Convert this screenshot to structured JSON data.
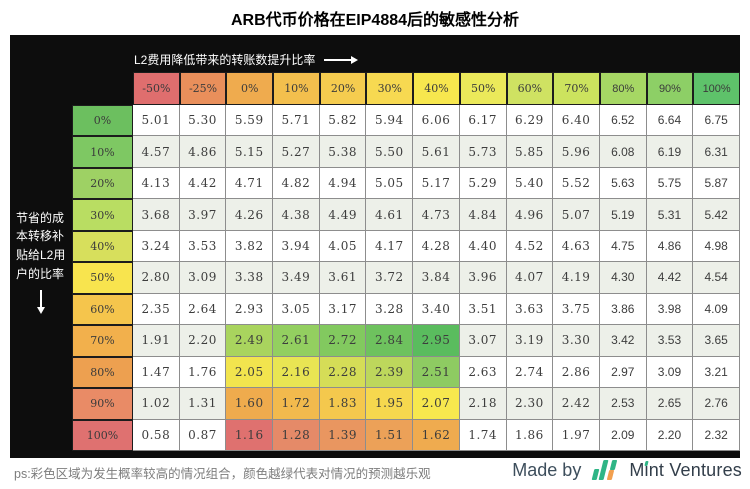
{
  "page": {
    "title": "ARB代币价格在EIP4884后的敏感性分析",
    "footnote": "ps:彩色区域为发生概率较高的情况组合，颜色越绿代表对情况的预测越乐观",
    "credit": {
      "made_by": "Made by",
      "brand": "Mint Ventures",
      "logo_icon": "mint-ventures-logo",
      "logo_green": "#2fb586",
      "logo_orange": "#f2a04f"
    }
  },
  "chart_data": {
    "type": "heatmap",
    "title": "ARB代币价格在EIP4884后的敏感性分析",
    "x_axis_label": "L2费用降低带来的转账数提升比率",
    "y_axis_label": "节省的成本转移补贴给L2用户的比率",
    "x_arrow": "right",
    "y_arrow": "down",
    "columns": [
      "-50%",
      "-25%",
      "0%",
      "10%",
      "20%",
      "30%",
      "40%",
      "50%",
      "60%",
      "70%",
      "80%",
      "90%",
      "100%"
    ],
    "rows": [
      "0%",
      "10%",
      "20%",
      "30%",
      "40%",
      "50%",
      "60%",
      "70%",
      "80%",
      "90%",
      "100%"
    ],
    "values": [
      [
        5.01,
        5.3,
        5.59,
        5.71,
        5.82,
        5.94,
        6.06,
        6.17,
        6.29,
        6.4,
        6.52,
        6.64,
        6.75
      ],
      [
        4.57,
        4.86,
        5.15,
        5.27,
        5.38,
        5.5,
        5.61,
        5.73,
        5.85,
        5.96,
        6.08,
        6.19,
        6.31
      ],
      [
        4.13,
        4.42,
        4.71,
        4.82,
        4.94,
        5.05,
        5.17,
        5.29,
        5.4,
        5.52,
        5.63,
        5.75,
        5.87
      ],
      [
        3.68,
        3.97,
        4.26,
        4.38,
        4.49,
        4.61,
        4.73,
        4.84,
        4.96,
        5.07,
        5.19,
        5.31,
        5.42
      ],
      [
        3.24,
        3.53,
        3.82,
        3.94,
        4.05,
        4.17,
        4.28,
        4.4,
        4.52,
        4.63,
        4.75,
        4.86,
        4.98
      ],
      [
        2.8,
        3.09,
        3.38,
        3.49,
        3.61,
        3.72,
        3.84,
        3.96,
        4.07,
        4.19,
        4.3,
        4.42,
        4.54
      ],
      [
        2.35,
        2.64,
        2.93,
        3.05,
        3.17,
        3.28,
        3.4,
        3.51,
        3.63,
        3.75,
        3.86,
        3.98,
        4.09
      ],
      [
        1.91,
        2.2,
        2.49,
        2.61,
        2.72,
        2.84,
        2.95,
        3.07,
        3.19,
        3.3,
        3.42,
        3.53,
        3.65
      ],
      [
        1.47,
        1.76,
        2.05,
        2.16,
        2.28,
        2.39,
        2.51,
        2.63,
        2.74,
        2.86,
        2.97,
        3.09,
        3.21
      ],
      [
        1.02,
        1.31,
        1.6,
        1.72,
        1.83,
        1.95,
        2.07,
        2.18,
        2.3,
        2.42,
        2.53,
        2.65,
        2.76
      ],
      [
        0.58,
        0.87,
        1.16,
        1.28,
        1.39,
        1.51,
        1.62,
        1.74,
        1.86,
        1.97,
        2.09,
        2.2,
        2.32
      ]
    ],
    "value_format": "0.00",
    "column_header_colors": [
      "#df6e6e",
      "#e98f5b",
      "#efab4e",
      "#f3bf4d",
      "#f5cc4f",
      "#f7d951",
      "#f7e74e",
      "#ebe95a",
      "#cfe262",
      "#cce35e",
      "#a6d764",
      "#8dcf66",
      "#5ec26a"
    ],
    "row_header_colors": [
      "#6cbf5f",
      "#7ec863",
      "#9ed164",
      "#b9dd62",
      "#d7df5c",
      "#f8e44e",
      "#f5c54c",
      "#f2b04c",
      "#eda050",
      "#e98b66",
      "#df7170"
    ],
    "row_alt_backgrounds": [
      "#ffffff",
      "#edf0e9"
    ],
    "cell_highlights": [
      {
        "r": 7,
        "c": 2,
        "color": "#a9d45e"
      },
      {
        "r": 7,
        "c": 3,
        "color": "#93cf60"
      },
      {
        "r": 7,
        "c": 4,
        "color": "#82c95f"
      },
      {
        "r": 7,
        "c": 5,
        "color": "#6ec25e"
      },
      {
        "r": 7,
        "c": 6,
        "color": "#5abc5e"
      },
      {
        "r": 8,
        "c": 2,
        "color": "#f2e44e"
      },
      {
        "r": 8,
        "c": 3,
        "color": "#e9e553"
      },
      {
        "r": 8,
        "c": 4,
        "color": "#d5dd57"
      },
      {
        "r": 8,
        "c": 5,
        "color": "#bdd75c"
      },
      {
        "r": 8,
        "c": 6,
        "color": "#8ecb62"
      },
      {
        "r": 9,
        "c": 2,
        "color": "#efab4d"
      },
      {
        "r": 9,
        "c": 3,
        "color": "#f2ba4d"
      },
      {
        "r": 9,
        "c": 4,
        "color": "#f4c84d"
      },
      {
        "r": 9,
        "c": 5,
        "color": "#f6d84e"
      },
      {
        "r": 9,
        "c": 6,
        "color": "#f7e84e"
      },
      {
        "r": 10,
        "c": 2,
        "color": "#df716f"
      },
      {
        "r": 10,
        "c": 3,
        "color": "#e58a68"
      },
      {
        "r": 10,
        "c": 4,
        "color": "#e99660"
      },
      {
        "r": 10,
        "c": 5,
        "color": "#eca158"
      },
      {
        "r": 10,
        "c": 6,
        "color": "#efab4f"
      }
    ],
    "colors": {
      "panel_background": "#0d0d0d",
      "grid_line": "#8d8d8d",
      "value_text": "#3d3d3d"
    },
    "legend_position": "none",
    "grid": true
  }
}
